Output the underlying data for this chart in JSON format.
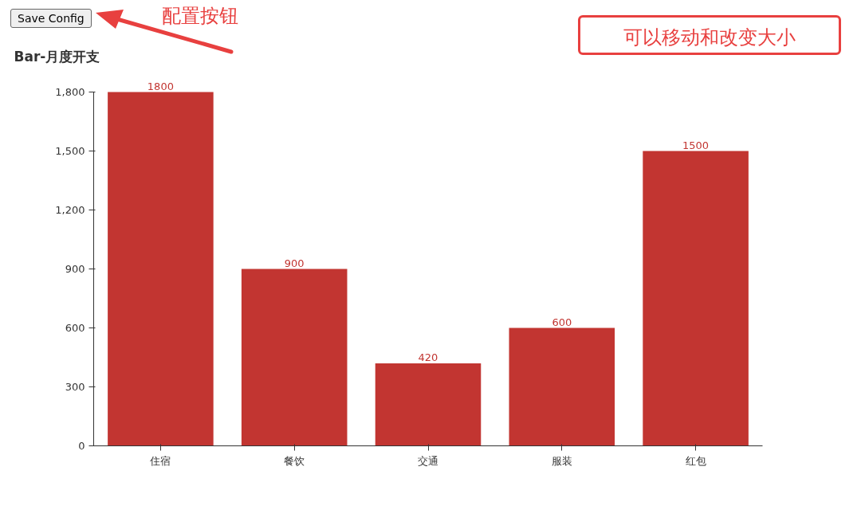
{
  "chart_data": {
    "type": "bar",
    "title": "Bar-月度开支",
    "categories": [
      "住宿",
      "餐饮",
      "交通",
      "服装",
      "红包"
    ],
    "values": [
      1800,
      900,
      420,
      600,
      1500
    ],
    "color": "#c23531",
    "ylim": [
      0,
      1800
    ],
    "yticks": [
      0,
      300,
      600,
      900,
      {
        "value": 1200,
        "label": "1,200"
      },
      {
        "value": 1500,
        "label": "1,500"
      },
      {
        "value": 1800,
        "label": "1,800"
      }
    ],
    "grid": false,
    "data_labels": true,
    "annotations": [
      "Save Config",
      "配置按钮",
      "可以移动和改变大小"
    ]
  }
}
